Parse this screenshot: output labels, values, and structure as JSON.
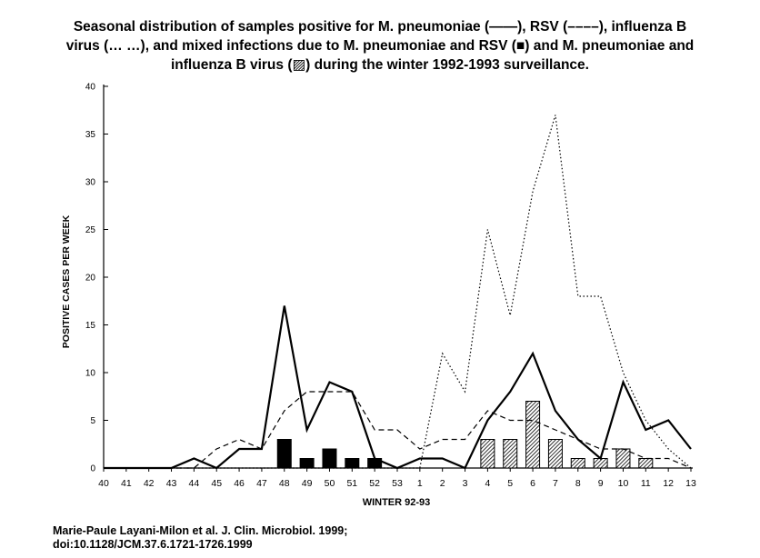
{
  "caption": {
    "line1": "Seasonal distribution of samples positive for M. pneumoniae (——), RSV (––––), influenza B",
    "line2": "virus (… …), and mixed infections due to M. pneumoniae and RSV (■) and M. pneumoniae and",
    "line3": "influenza B virus (▨) during the winter 1992-1993 surveillance."
  },
  "citation": {
    "line1": "Marie-Paule Layani-Milon et al. J. Clin. Microbiol. 1999;",
    "line2": "doi:10.1128/JCM.37.6.1721-1726.1999"
  },
  "colors": {
    "ink": "#000000",
    "background": "#ffffff"
  },
  "chart_data": {
    "type": "line",
    "xlabel": "WINTER 92-93",
    "ylabel": "POSITIVE CASES PER WEEK",
    "ylim": [
      0,
      40
    ],
    "yticks": [
      0,
      5,
      10,
      15,
      20,
      25,
      30,
      35,
      40
    ],
    "categories": [
      "40",
      "41",
      "42",
      "43",
      "44",
      "45",
      "46",
      "47",
      "48",
      "49",
      "50",
      "51",
      "52",
      "53",
      "1",
      "2",
      "3",
      "4",
      "5",
      "6",
      "7",
      "8",
      "9",
      "10",
      "11",
      "12",
      "13"
    ],
    "series": [
      {
        "style": "solid",
        "values": [
          0,
          0,
          0,
          0,
          1,
          0,
          2,
          2,
          17,
          4,
          9,
          8,
          1,
          0,
          1,
          1,
          0,
          5,
          8,
          12,
          6,
          3,
          1,
          9,
          4,
          5,
          2
        ]
      },
      {
        "style": "dashed",
        "values": [
          0,
          0,
          0,
          0,
          0,
          2,
          3,
          2,
          6,
          8,
          8,
          8,
          4,
          4,
          2,
          3,
          3,
          6,
          5,
          5,
          4,
          3,
          2,
          2,
          1,
          1,
          0
        ]
      },
      {
        "style": "dotted",
        "values": [
          0,
          0,
          0,
          0,
          0,
          0,
          0,
          0,
          0,
          0,
          0,
          0,
          0,
          0,
          0,
          12,
          8,
          25,
          16,
          29,
          37,
          18,
          18,
          10,
          5,
          2,
          0
        ]
      }
    ],
    "bars": [
      {
        "style": "solid",
        "values": [
          0,
          0,
          0,
          0,
          0,
          0,
          0,
          0,
          3,
          1,
          2,
          1,
          1,
          0,
          0,
          0,
          0,
          0,
          0,
          0,
          0,
          0,
          0,
          0,
          0,
          0,
          0
        ]
      },
      {
        "style": "hatched",
        "values": [
          0,
          0,
          0,
          0,
          0,
          0,
          0,
          0,
          0,
          0,
          0,
          0,
          0,
          0,
          0,
          0,
          0,
          3,
          3,
          7,
          3,
          1,
          1,
          2,
          1,
          0,
          0
        ]
      }
    ],
    "grid": false,
    "legend": "none"
  }
}
